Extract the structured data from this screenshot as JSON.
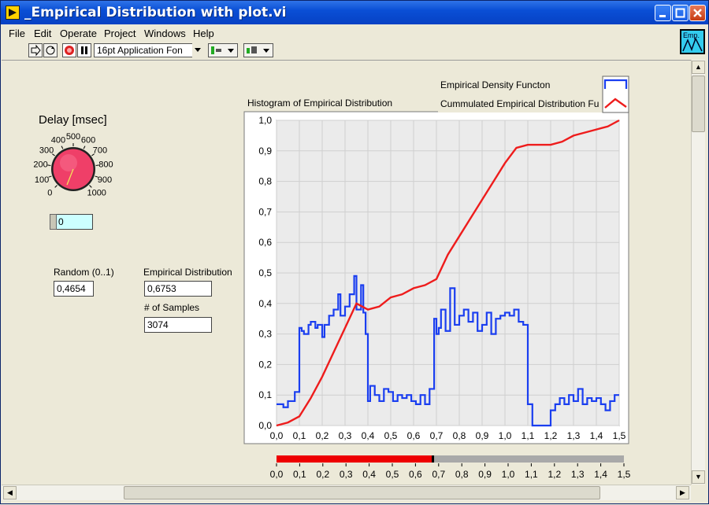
{
  "window": {
    "title": "_Empirical Distribution with plot.vi"
  },
  "menu": [
    "File",
    "Edit",
    "Operate",
    "Project",
    "Windows",
    "Help"
  ],
  "toolbar": {
    "font_selector": "16pt Application Fon"
  },
  "vi_icon_label": "Emp.",
  "controls": {
    "delay_title": "Delay [msec]",
    "knob_labels": [
      "0",
      "100",
      "200",
      "300",
      "400",
      "500",
      "600",
      "700",
      "800",
      "900",
      "1000"
    ],
    "delay_value": "0",
    "random_label": "Random (0..1)",
    "random_value": "0,4654",
    "empirical_label": "Empirical Distribution",
    "empirical_value": "0,6753",
    "samples_label": "# of Samples",
    "samples_value": "3074"
  },
  "colors": {
    "density": "#1a3ef0",
    "cdf": "#ee1c1c",
    "knob": "#ef3f68",
    "slider": "#ee0000"
  },
  "chart_data": {
    "type": "line",
    "title": "Histogram of Empirical Distribution",
    "xlim": [
      0,
      1.5
    ],
    "ylim": [
      0,
      1.0
    ],
    "xticks": [
      "0,0",
      "0,1",
      "0,2",
      "0,3",
      "0,4",
      "0,5",
      "0,6",
      "0,7",
      "0,8",
      "0,9",
      "1,0",
      "1,1",
      "1,2",
      "1,3",
      "1,4",
      "1,5"
    ],
    "yticks": [
      "0,0",
      "0,1",
      "0,2",
      "0,3",
      "0,4",
      "0,5",
      "0,6",
      "0,7",
      "0,8",
      "0,9",
      "1,0"
    ],
    "grid": true,
    "legend_position": "top-right",
    "series": [
      {
        "name": "Empirical Density Functon",
        "step": true,
        "x": [
          0,
          0.03,
          0.05,
          0.08,
          0.1,
          0.11,
          0.12,
          0.14,
          0.15,
          0.17,
          0.18,
          0.2,
          0.21,
          0.23,
          0.25,
          0.27,
          0.28,
          0.3,
          0.32,
          0.34,
          0.35,
          0.37,
          0.38,
          0.39,
          0.4,
          0.41,
          0.43,
          0.45,
          0.47,
          0.49,
          0.51,
          0.53,
          0.55,
          0.57,
          0.59,
          0.61,
          0.63,
          0.65,
          0.67,
          0.69,
          0.7,
          0.71,
          0.72,
          0.74,
          0.76,
          0.78,
          0.8,
          0.82,
          0.84,
          0.86,
          0.88,
          0.9,
          0.92,
          0.94,
          0.96,
          0.98,
          1.0,
          1.02,
          1.04,
          1.06,
          1.08,
          1.1,
          1.12,
          1.15,
          1.18,
          1.2,
          1.22,
          1.24,
          1.26,
          1.28,
          1.3,
          1.32,
          1.34,
          1.36,
          1.38,
          1.4,
          1.42,
          1.44,
          1.46,
          1.48
        ],
        "y": [
          0.07,
          0.06,
          0.08,
          0.11,
          0.32,
          0.31,
          0.3,
          0.33,
          0.34,
          0.32,
          0.33,
          0.29,
          0.33,
          0.36,
          0.38,
          0.43,
          0.36,
          0.39,
          0.43,
          0.49,
          0.38,
          0.46,
          0.37,
          0.3,
          0.08,
          0.13,
          0.1,
          0.08,
          0.12,
          0.11,
          0.08,
          0.1,
          0.09,
          0.1,
          0.08,
          0.07,
          0.1,
          0.07,
          0.12,
          0.35,
          0.3,
          0.32,
          0.38,
          0.31,
          0.45,
          0.33,
          0.36,
          0.38,
          0.34,
          0.37,
          0.31,
          0.33,
          0.37,
          0.3,
          0.35,
          0.36,
          0.37,
          0.36,
          0.38,
          0.34,
          0.33,
          0.07,
          0.0,
          0.0,
          0.0,
          0.05,
          0.07,
          0.09,
          0.07,
          0.1,
          0.08,
          0.12,
          0.07,
          0.09,
          0.08,
          0.09,
          0.07,
          0.05,
          0.08,
          0.1
        ]
      },
      {
        "name": "Cummulated Empirical Distribution Fu",
        "x": [
          0,
          0.05,
          0.1,
          0.15,
          0.2,
          0.25,
          0.3,
          0.35,
          0.4,
          0.45,
          0.5,
          0.55,
          0.6,
          0.65,
          0.7,
          0.75,
          0.8,
          0.85,
          0.9,
          0.95,
          1.0,
          1.05,
          1.1,
          1.15,
          1.2,
          1.25,
          1.3,
          1.35,
          1.4,
          1.45,
          1.5
        ],
        "y": [
          0,
          0.01,
          0.03,
          0.09,
          0.16,
          0.24,
          0.32,
          0.4,
          0.38,
          0.39,
          0.42,
          0.43,
          0.45,
          0.46,
          0.48,
          0.56,
          0.62,
          0.68,
          0.74,
          0.8,
          0.86,
          0.91,
          0.92,
          0.92,
          0.92,
          0.93,
          0.95,
          0.96,
          0.97,
          0.98,
          1.0
        ]
      }
    ]
  },
  "slider": {
    "value": 0.6753,
    "xlim": [
      0,
      1.5
    ],
    "ticks": [
      "0,0",
      "0,1",
      "0,2",
      "0,3",
      "0,4",
      "0,5",
      "0,6",
      "0,7",
      "0,8",
      "0,9",
      "1,0",
      "1,1",
      "1,2",
      "1,3",
      "1,4",
      "1,5"
    ]
  }
}
